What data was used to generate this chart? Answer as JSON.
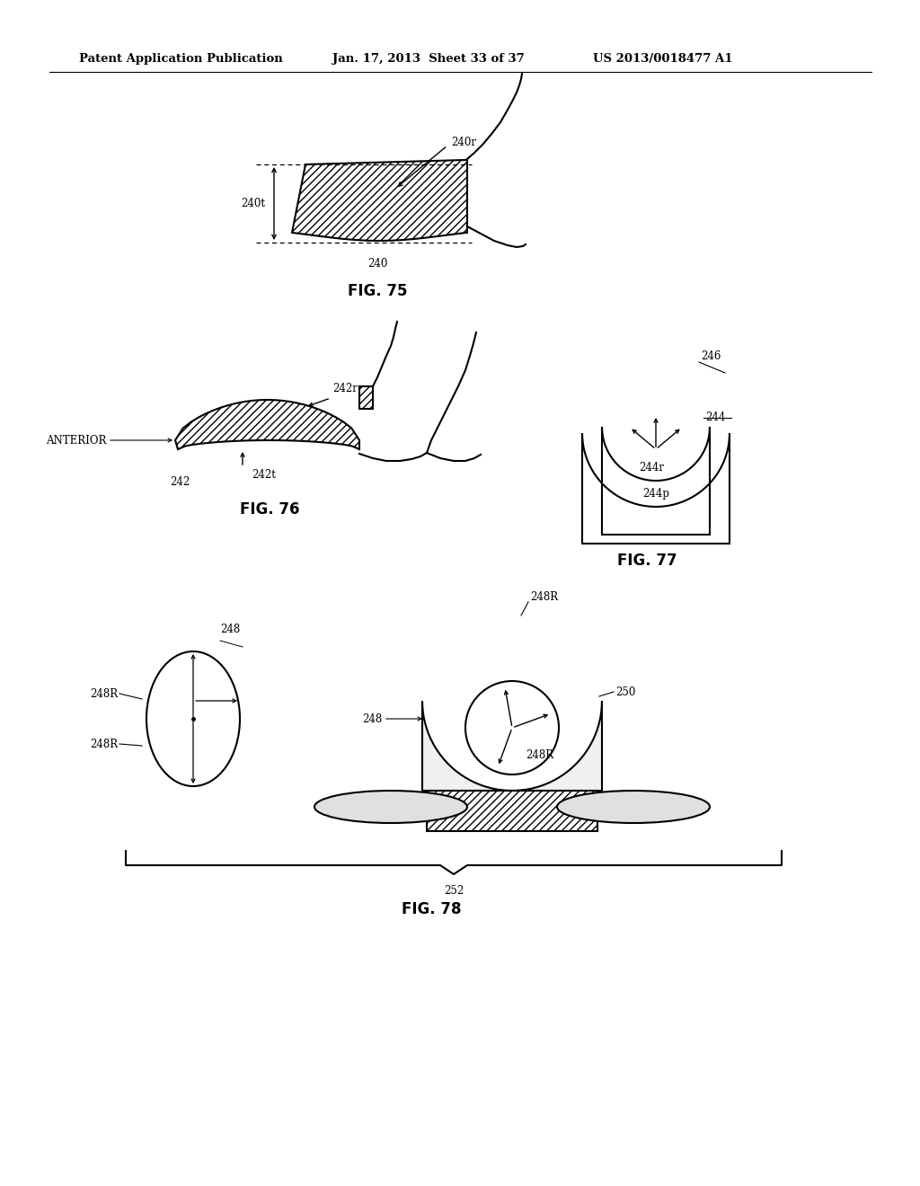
{
  "bg_color": "#ffffff",
  "header_left": "Patent Application Publication",
  "header_center": "Jan. 17, 2013  Sheet 33 of 37",
  "header_right": "US 2013/0018477 A1"
}
